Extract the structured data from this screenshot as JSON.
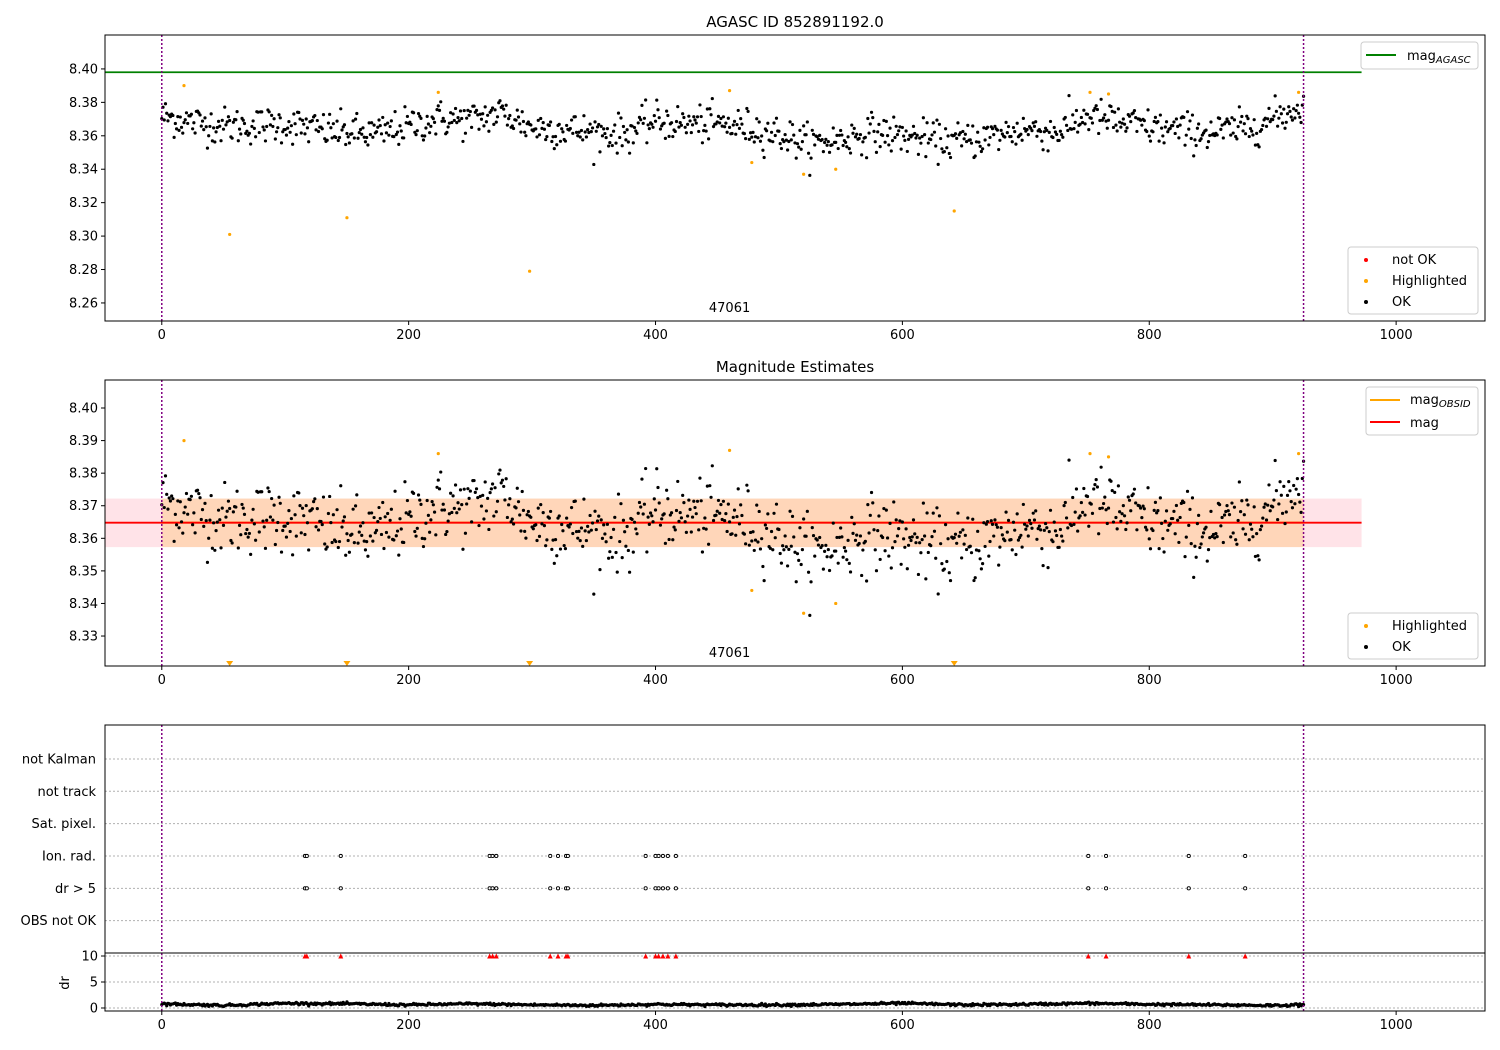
{
  "chart_data": [
    {
      "type": "scatter",
      "title": "AGASC ID 852891192.0",
      "xlim": [
        -46,
        1072
      ],
      "ylim": [
        8.2492,
        8.4203
      ],
      "xticks": [
        0,
        200,
        400,
        600,
        800,
        1000
      ],
      "yticks": [
        8.26,
        8.28,
        8.3,
        8.32,
        8.34,
        8.36,
        8.38,
        8.4
      ],
      "ytick_labels": [
        "8.26",
        "8.28",
        "8.30",
        "8.32",
        "8.34",
        "8.36",
        "8.38",
        "8.40"
      ],
      "mag_agasc": 8.398,
      "line_xrange": [
        -46,
        972
      ],
      "obs_boundaries": [
        0,
        925
      ],
      "annotation": {
        "text": "47061",
        "x": 460
      },
      "ok_trend": {
        "x": [
          0,
          25,
          50,
          75,
          100,
          125,
          150,
          175,
          200,
          225,
          250,
          275,
          300,
          325,
          350,
          375,
          400,
          425,
          450,
          475,
          500,
          525,
          550,
          575,
          600,
          625,
          650,
          675,
          700,
          725,
          750,
          775,
          800,
          825,
          850,
          875,
          900,
          925
        ],
        "y": [
          8.372,
          8.368,
          8.366,
          8.366,
          8.367,
          8.364,
          8.362,
          8.361,
          8.366,
          8.37,
          8.369,
          8.374,
          8.365,
          8.364,
          8.362,
          8.361,
          8.369,
          8.367,
          8.367,
          8.365,
          8.361,
          8.355,
          8.358,
          8.362,
          8.36,
          8.357,
          8.357,
          8.36,
          8.364,
          8.362,
          8.372,
          8.368,
          8.365,
          8.363,
          8.362,
          8.364,
          8.37,
          8.378
        ],
        "scatter_sd": 0.0055,
        "n_points": 926
      },
      "highlighted": {
        "x": [
          18,
          55,
          150,
          224,
          298,
          460,
          478,
          520,
          546,
          642,
          752,
          767,
          921
        ],
        "y": [
          8.39,
          8.301,
          8.311,
          8.386,
          8.279,
          8.387,
          8.344,
          8.337,
          8.34,
          8.315,
          8.386,
          8.385,
          8.386
        ]
      },
      "legend_top": {
        "label_main": "mag",
        "label_sub": "AGASC"
      },
      "legend_bottom": [
        "not OK",
        "Highlighted",
        "OK"
      ]
    },
    {
      "type": "scatter",
      "title": "Magnitude Estimates",
      "xlim": [
        -46,
        1072
      ],
      "ylim": [
        8.3208,
        8.4086
      ],
      "xticks": [
        0,
        200,
        400,
        600,
        800,
        1000
      ],
      "yticks": [
        8.33,
        8.34,
        8.35,
        8.36,
        8.37,
        8.38,
        8.39,
        8.4
      ],
      "ytick_labels": [
        "8.33",
        "8.34",
        "8.35",
        "8.36",
        "8.37",
        "8.38",
        "8.39",
        "8.40"
      ],
      "mag": 8.3648,
      "mag_band": [
        8.3573,
        8.3722
      ],
      "mag_obsid_band": [
        8.3573,
        8.3722
      ],
      "annotation": {
        "text": "47061",
        "x": 460
      },
      "legend_top": [
        {
          "label_main": "mag",
          "label_sub": "OBSID"
        },
        {
          "label_main": "mag",
          "label_sub": ""
        }
      ],
      "legend_bottom": [
        "Highlighted",
        "OK"
      ]
    },
    {
      "type": "scatter",
      "categories": [
        "OBS not OK",
        "dr > 5",
        "Ion. rad.",
        "Sat. pixel.",
        "not track",
        "not Kalman"
      ],
      "flag_x": [
        116,
        117.5,
        145,
        265.6,
        268,
        271,
        314.7,
        321,
        327.5,
        329,
        392,
        400,
        402.5,
        406,
        410,
        416.5,
        750.6,
        765,
        832,
        877.7
      ],
      "flagged_categories": [
        "dr > 5",
        "Ion. rad."
      ],
      "dr": {
        "ylabel": "dr",
        "yticks": [
          0,
          5,
          10
        ],
        "ytick_labels": [
          "0",
          "5",
          "10"
        ],
        "ylim": [
          -0.58,
          10.58
        ],
        "clip_value": 10,
        "trend_x": [
          0,
          50,
          100,
          150,
          200,
          250,
          300,
          350,
          400,
          450,
          500,
          550,
          600,
          650,
          700,
          750,
          800,
          850,
          900,
          925
        ],
        "trend_y": [
          0.8,
          0.5,
          0.9,
          0.8,
          0.6,
          0.8,
          0.6,
          0.5,
          0.7,
          0.6,
          0.6,
          0.7,
          0.9,
          0.6,
          0.7,
          0.9,
          0.7,
          0.6,
          0.5,
          0.6
        ]
      }
    }
  ],
  "colors": {
    "ok": "#000000",
    "highlighted": "#ffa500",
    "not_ok": "#ff0000",
    "agasc": "#008000",
    "mag": "#ff0000",
    "obsid": "#ffa500",
    "boundary": "#800080"
  }
}
